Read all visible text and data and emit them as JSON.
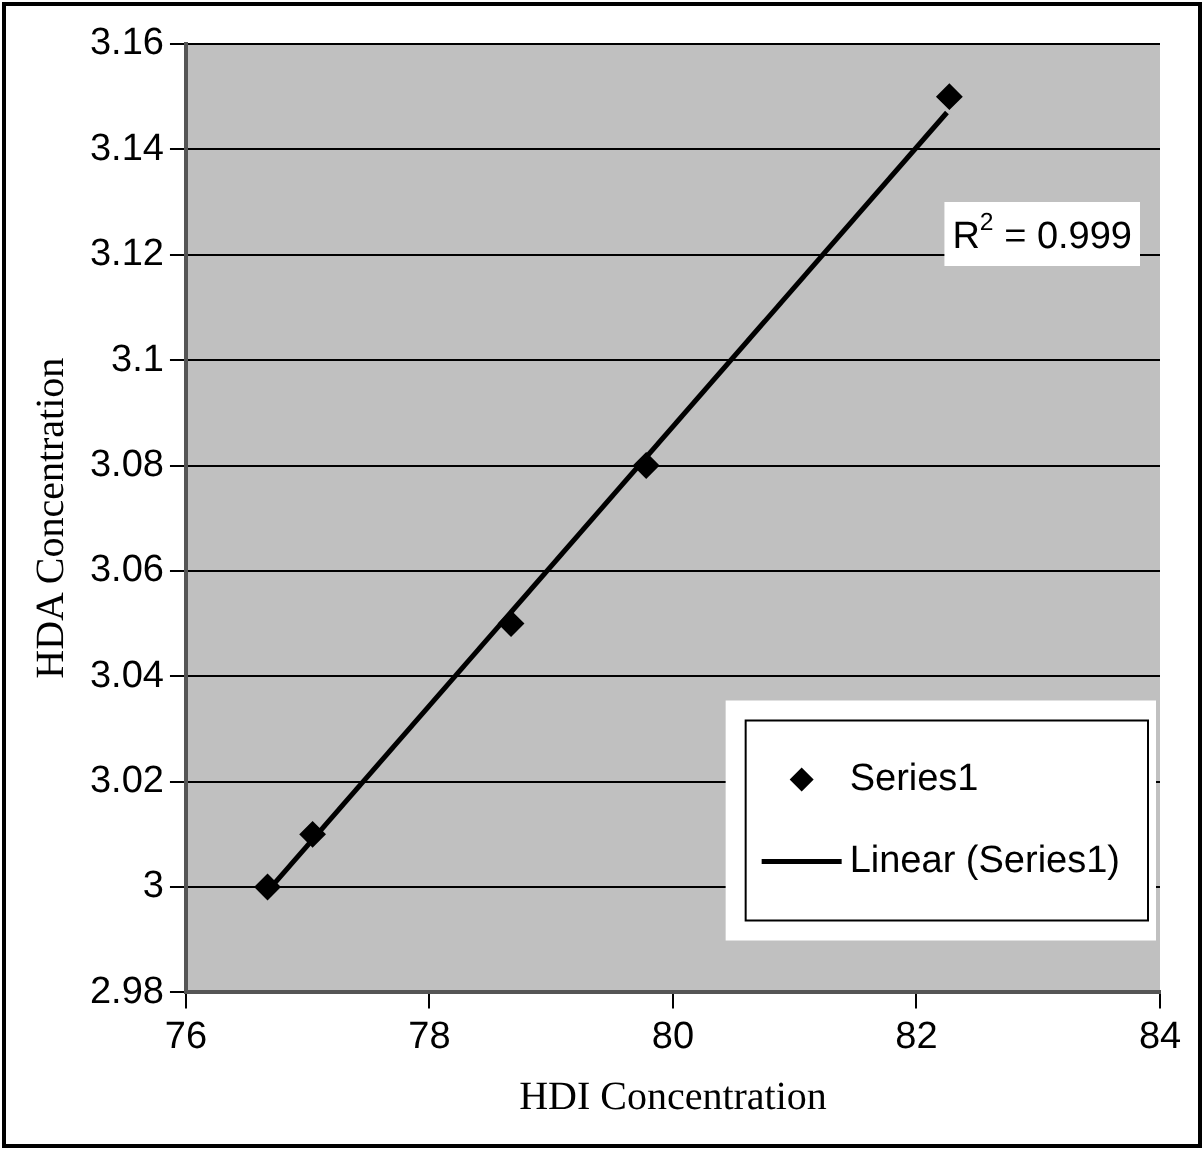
{
  "chart_data": {
    "type": "scatter",
    "xlabel": "HDI Concentration",
    "ylabel": "HDA Concentration",
    "xlim": [
      76,
      84
    ],
    "xticks": [
      76,
      78,
      80,
      82,
      84
    ],
    "ylim": [
      2.98,
      3.16
    ],
    "yticks": [
      2.98,
      3,
      3.02,
      3.04,
      3.06,
      3.08,
      3.1,
      3.12,
      3.14,
      3.16
    ],
    "grid": "y",
    "legend": "bottom right",
    "series": [
      {
        "name": "Series1",
        "marker": "diamond",
        "color": "#000000",
        "x": [
          76.67,
          77.04,
          78.67,
          79.78,
          82.27
        ],
        "values": [
          3.0,
          3.01,
          3.05,
          3.08,
          3.15
        ]
      },
      {
        "name": "Linear (Series1)",
        "type": "line",
        "marker": "none",
        "color": "#000000",
        "line_style": "solid",
        "x": [
          76.7,
          82.25
        ],
        "values": [
          3.0,
          3.147
        ]
      }
    ],
    "annotations": [
      "R$^{2}$ = 0.999"
    ]
  }
}
